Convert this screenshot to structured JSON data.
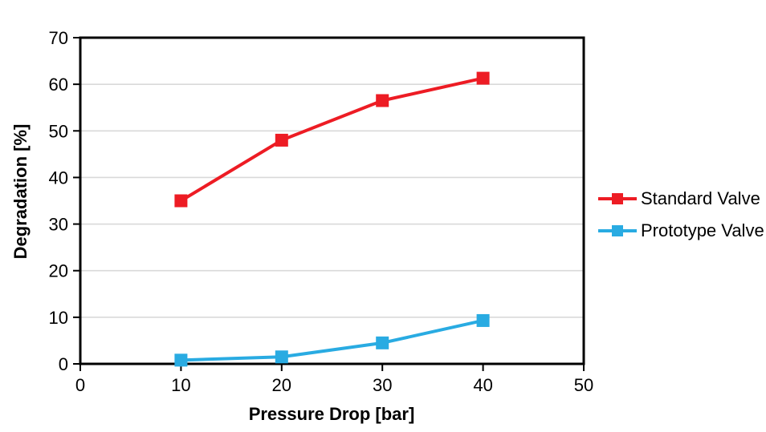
{
  "chart_data": {
    "type": "line",
    "title": "",
    "xlabel": "Pressure Drop [bar]",
    "ylabel": "Degradation [%]",
    "x": [
      10,
      20,
      30,
      40
    ],
    "series": [
      {
        "name": "Standard Valve",
        "color": "#ED1C24",
        "marker": "square",
        "values": [
          35,
          48,
          56.5,
          61.3
        ]
      },
      {
        "name": "Prototype Valve",
        "color": "#29ABE2",
        "marker": "square",
        "values": [
          0.8,
          1.5,
          4.5,
          9.3
        ]
      }
    ],
    "x_axis": {
      "min": 0,
      "max": 50,
      "tick_step": 10,
      "ticks": [
        0,
        10,
        20,
        30,
        40,
        50
      ],
      "tick_labels": [
        "0",
        "10",
        "20",
        "30",
        "40",
        "50"
      ]
    },
    "y_axis": {
      "min": 0,
      "max": 70,
      "tick_step": 10,
      "ticks": [
        0,
        10,
        20,
        30,
        40,
        50,
        60,
        70
      ],
      "tick_labels": [
        "0",
        "10",
        "20",
        "30",
        "40",
        "50",
        "60",
        "70"
      ]
    },
    "grid": "horizontal",
    "legend_position": "right-middle",
    "colors": {
      "gridline": "#d9d9d9",
      "axis": "#000000",
      "background": "#ffffff",
      "text": "#000000"
    }
  }
}
